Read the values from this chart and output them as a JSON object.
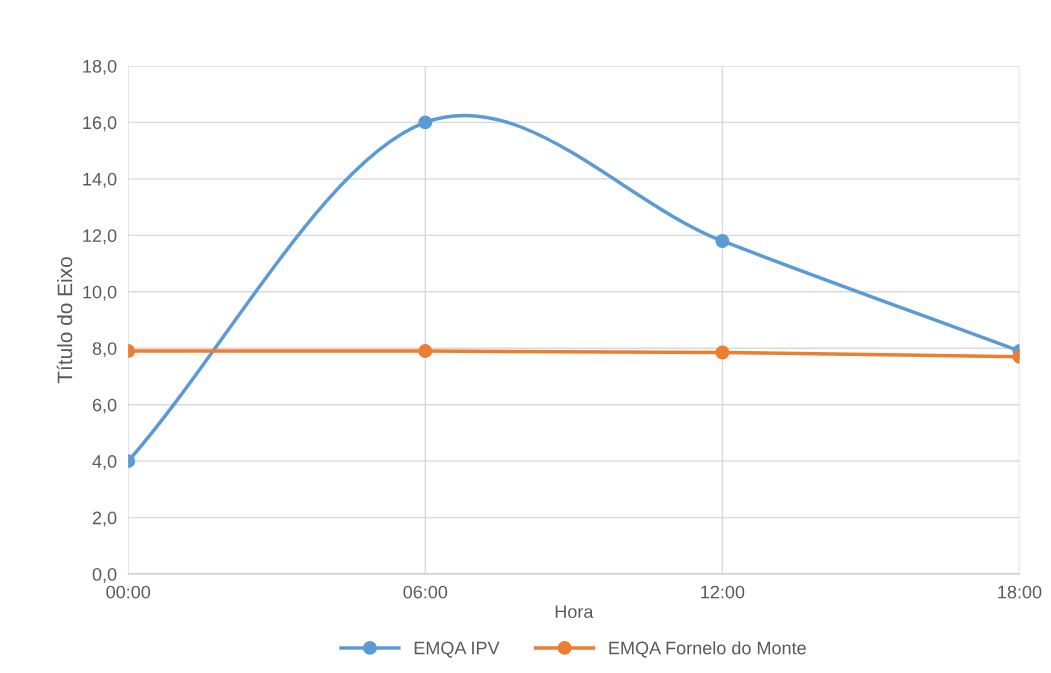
{
  "chart_data": {
    "type": "line",
    "xlabel": "Hora",
    "ylabel": "Título do Eixo",
    "x": [
      0,
      6,
      12,
      18
    ],
    "xlim": [
      0,
      18
    ],
    "xticks": [
      {
        "value": 0,
        "label": "00:00"
      },
      {
        "value": 6,
        "label": "06:00"
      },
      {
        "value": 12,
        "label": "12:00"
      },
      {
        "value": 18,
        "label": "18:00"
      }
    ],
    "ylim": [
      0,
      18
    ],
    "yticks": [
      {
        "value": 0,
        "label": "0,0"
      },
      {
        "value": 2,
        "label": "2,0"
      },
      {
        "value": 4,
        "label": "4,0"
      },
      {
        "value": 6,
        "label": "6,0"
      },
      {
        "value": 8,
        "label": "8,0"
      },
      {
        "value": 10,
        "label": "10,0"
      },
      {
        "value": 12,
        "label": "12,0"
      },
      {
        "value": 14,
        "label": "14,0"
      },
      {
        "value": 16,
        "label": "16,0"
      },
      {
        "value": 18,
        "label": "18,0"
      }
    ],
    "series": [
      {
        "name": "EMQA IPV",
        "color": "#5b9bd5",
        "values": [
          4.0,
          16.0,
          11.8,
          7.9
        ]
      },
      {
        "name": "EMQA Fornelo do Monte",
        "color": "#ed7d31",
        "values": [
          7.9,
          7.9,
          7.85,
          7.7
        ]
      }
    ],
    "grid": true,
    "legend": "bottom",
    "marker": "circle",
    "line_style": "solid"
  }
}
